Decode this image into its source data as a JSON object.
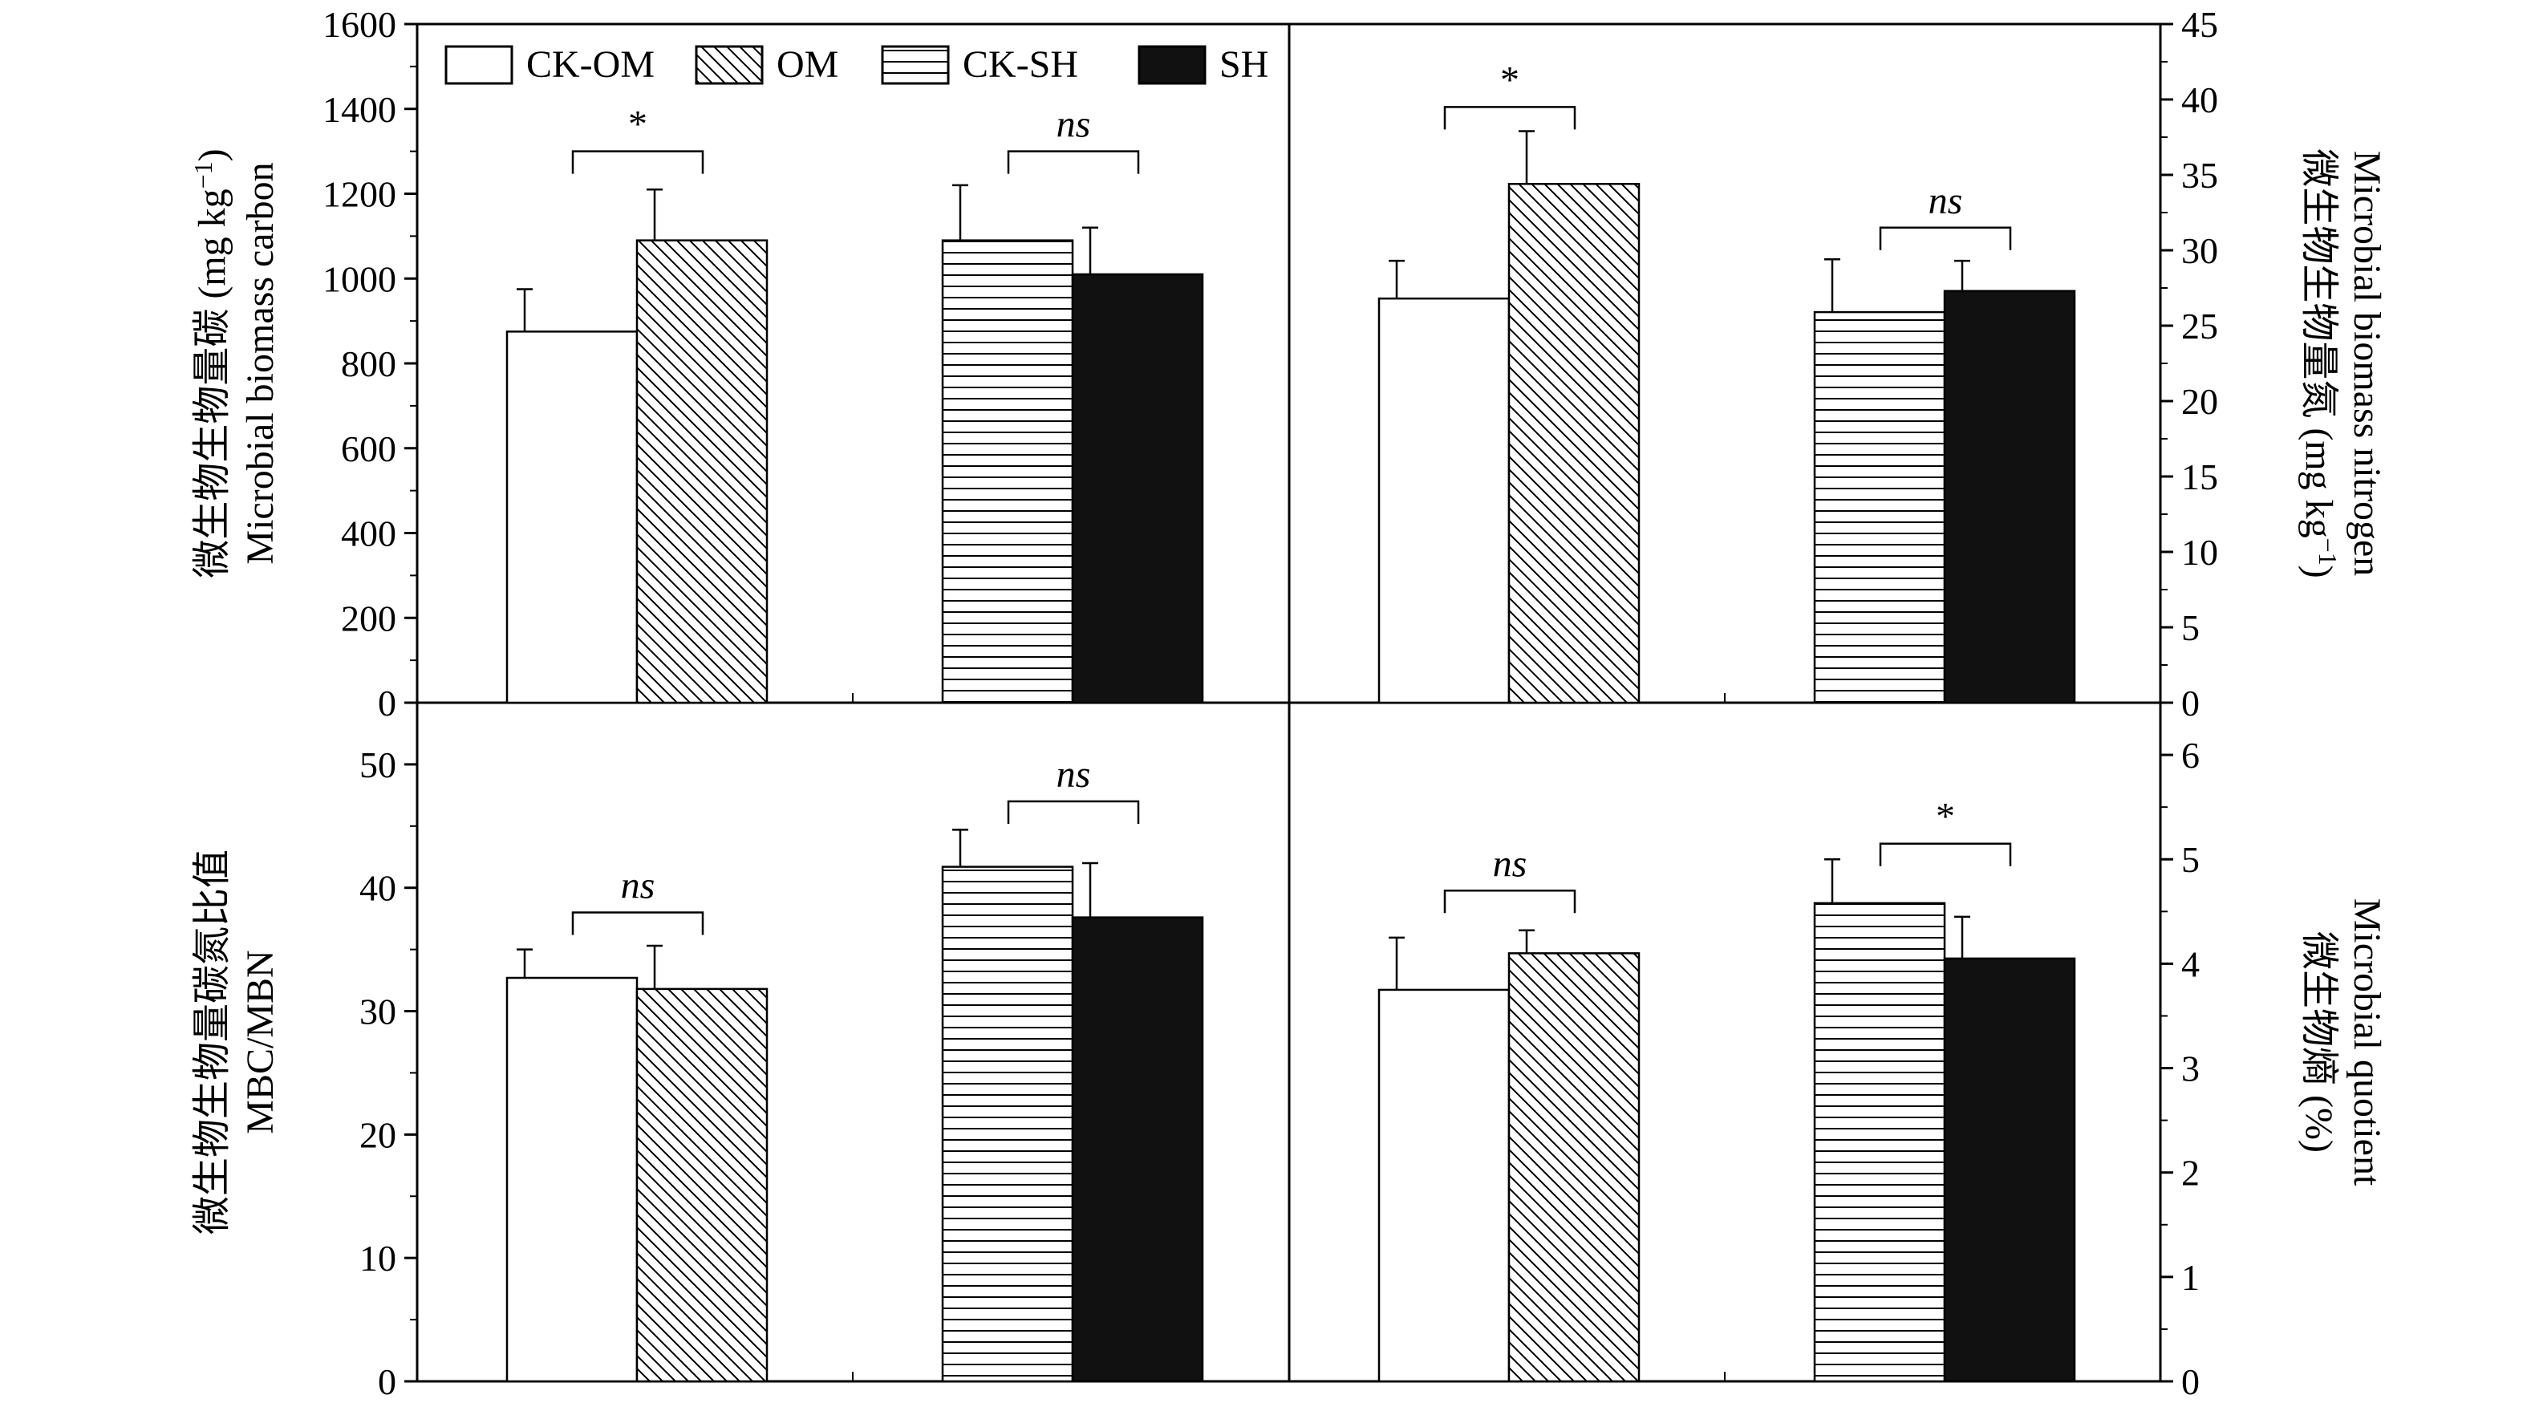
{
  "legend": [
    {
      "key": "ckom",
      "label": "CK-OM",
      "fill": "white"
    },
    {
      "key": "om",
      "label": "OM",
      "fill": "diag"
    },
    {
      "key": "cksh",
      "label": "CK-SH",
      "fill": "horiz"
    },
    {
      "key": "sh",
      "label": "SH",
      "fill": "black"
    }
  ],
  "colors": {
    "stroke": "#000000",
    "background": "#ffffff",
    "solid": "#111111"
  },
  "chart_data": [
    {
      "type": "bar",
      "panel": "top-left",
      "axis_side": "left",
      "ylabel_cn": "微生物生物量碳 (mg kg",
      "ylabel_unit_sup": "−1",
      "ylabel_unit_close": ")",
      "ylabel_en": "Microbial biomass carbon",
      "ylim": [
        0,
        1600
      ],
      "yticks": [
        0,
        200,
        400,
        600,
        800,
        1000,
        1200,
        1400,
        1600
      ],
      "series": [
        {
          "key": "ckom",
          "value": 875,
          "error": 100
        },
        {
          "key": "om",
          "value": 1090,
          "error": 120
        },
        {
          "key": "cksh",
          "value": 1090,
          "error": 130
        },
        {
          "key": "sh",
          "value": 1010,
          "error": 110
        }
      ],
      "significance": [
        {
          "label": "*",
          "group": 0,
          "italic": false,
          "level": 1300
        },
        {
          "label": "ns",
          "group": 1,
          "italic": true,
          "level": 1300
        }
      ]
    },
    {
      "type": "bar",
      "panel": "top-right",
      "axis_side": "right",
      "ylabel_cn": "微生物生物量氮 (mg kg",
      "ylabel_unit_sup": "−1",
      "ylabel_unit_close": ")",
      "ylabel_en": "Microbial biomass nitrogen",
      "ylim": [
        0,
        45
      ],
      "yticks": [
        0,
        5,
        10,
        15,
        20,
        25,
        30,
        35,
        40,
        45
      ],
      "series": [
        {
          "key": "ckom",
          "value": 26.8,
          "error": 2.5
        },
        {
          "key": "om",
          "value": 34.4,
          "error": 3.5
        },
        {
          "key": "cksh",
          "value": 25.9,
          "error": 3.5
        },
        {
          "key": "sh",
          "value": 27.3,
          "error": 2.0
        }
      ],
      "significance": [
        {
          "label": "*",
          "group": 0,
          "italic": false,
          "level": 39.5
        },
        {
          "label": "ns",
          "group": 1,
          "italic": true,
          "level": 31.5
        }
      ]
    },
    {
      "type": "bar",
      "panel": "bottom-left",
      "axis_side": "left",
      "ylabel_cn": "微生物生物量碳氮比值",
      "ylabel_en": "MBC/MBN",
      "ylim": [
        0,
        55
      ],
      "yticks": [
        0,
        10,
        20,
        30,
        40,
        50
      ],
      "series": [
        {
          "key": "ckom",
          "value": 32.7,
          "error": 2.3
        },
        {
          "key": "om",
          "value": 31.8,
          "error": 3.5
        },
        {
          "key": "cksh",
          "value": 41.7,
          "error": 3.0
        },
        {
          "key": "sh",
          "value": 37.6,
          "error": 4.4
        }
      ],
      "significance": [
        {
          "label": "ns",
          "group": 0,
          "italic": true,
          "level": 38.0
        },
        {
          "label": "ns",
          "group": 1,
          "italic": true,
          "level": 47.0
        }
      ]
    },
    {
      "type": "bar",
      "panel": "bottom-right",
      "axis_side": "right",
      "ylabel_cn": "微生物熵 (%)",
      "ylabel_en": "Microbial quotient",
      "ylim": [
        0,
        6.5
      ],
      "yticks": [
        0,
        1,
        2,
        3,
        4,
        5,
        6
      ],
      "series": [
        {
          "key": "ckom",
          "value": 3.75,
          "error": 0.5
        },
        {
          "key": "om",
          "value": 4.1,
          "error": 0.22
        },
        {
          "key": "cksh",
          "value": 4.58,
          "error": 0.42
        },
        {
          "key": "sh",
          "value": 4.05,
          "error": 0.4
        }
      ],
      "significance": [
        {
          "label": "ns",
          "group": 0,
          "italic": true,
          "level": 4.7
        },
        {
          "label": "*",
          "group": 1,
          "italic": false,
          "level": 5.15
        }
      ]
    }
  ]
}
